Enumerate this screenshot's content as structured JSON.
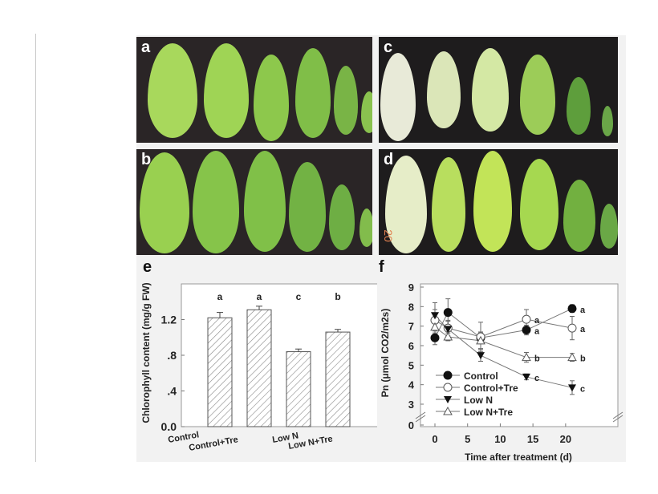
{
  "panels": {
    "a": {
      "label": "a"
    },
    "b": {
      "label": "b"
    },
    "c": {
      "label": "c",
      "stamp": ""
    },
    "d": {
      "label": "d",
      "stamp": "20"
    },
    "e": {
      "label": "e"
    },
    "f": {
      "label": "f"
    }
  },
  "chart_data": [
    {
      "panel": "e",
      "type": "bar",
      "title": "",
      "xlabel": "",
      "ylabel": "Chlorophyll content (mg/g FW)",
      "categories": [
        "Control",
        "Control+Tre",
        "Low N",
        "Low N+Tre"
      ],
      "values": [
        1.22,
        1.31,
        0.84,
        1.06
      ],
      "errors": [
        0.06,
        0.04,
        0.03,
        0.03
      ],
      "significance": [
        "a",
        "a",
        "c",
        "b"
      ],
      "ylim": [
        0,
        1.6
      ],
      "yticks": [
        "0.0",
        ".4",
        ".8",
        "1.2"
      ],
      "grid": false,
      "bar_fill": "hatched"
    },
    {
      "panel": "f",
      "type": "line",
      "title": "",
      "xlabel": "Time after treatment (d)",
      "ylabel": "Pn (μmol CO2/m2s)",
      "x": [
        0,
        2,
        7,
        14,
        21
      ],
      "xticks": [
        "0",
        "5",
        "10",
        "15",
        "20"
      ],
      "yticks": [
        "0",
        "3",
        "4",
        "5",
        "6",
        "7",
        "8",
        "9"
      ],
      "ylim": [
        0,
        9
      ],
      "axis_break": true,
      "legend_position": "lower left",
      "series": [
        {
          "name": "Control",
          "marker": "filled-circle",
          "values": [
            6.4,
            7.7,
            6.4,
            6.8,
            7.9
          ],
          "errors": [
            0.35,
            0.7,
            0.3,
            0.25,
            0.2
          ],
          "end_labels": {
            "14": "a",
            "21": "a"
          }
        },
        {
          "name": "Control+Tre",
          "marker": "open-circle",
          "values": [
            7.3,
            6.9,
            6.45,
            7.35,
            6.9
          ],
          "errors": [
            0.9,
            0.4,
            0.75,
            0.5,
            0.6
          ],
          "end_labels": {
            "14": "a",
            "21": "a"
          }
        },
        {
          "name": "Low N",
          "marker": "filled-triangle-down",
          "values": [
            7.55,
            6.85,
            5.5,
            4.4,
            3.85
          ],
          "errors": [
            0.3,
            0.4,
            0.3,
            0.15,
            0.35
          ],
          "end_labels": {
            "14": "c",
            "21": "c"
          }
        },
        {
          "name": "Low N+Tre",
          "marker": "open-triangle-up",
          "values": [
            6.95,
            6.45,
            6.25,
            5.4,
            5.4
          ],
          "errors": [
            0.3,
            0.2,
            0.4,
            0.25,
            0.2
          ],
          "end_labels": {
            "14": "b",
            "21": "b"
          }
        }
      ]
    }
  ]
}
